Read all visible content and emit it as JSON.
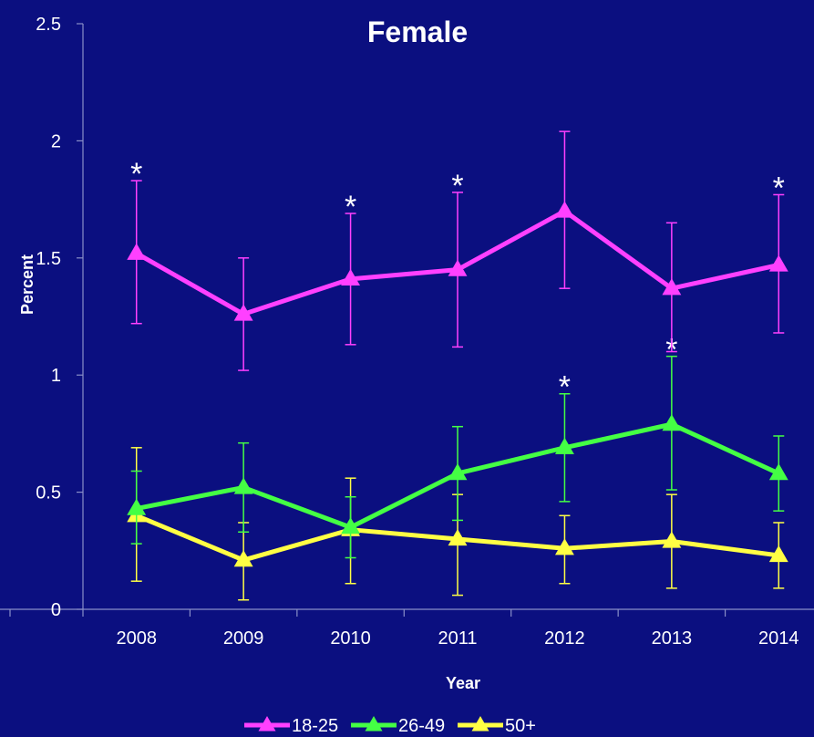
{
  "chart_data": {
    "type": "line",
    "title": "Female",
    "xlabel": "Year",
    "ylabel": "Percent",
    "x": [
      "2008",
      "2009",
      "2010",
      "2011",
      "2012",
      "2013",
      "2014"
    ],
    "ylim": [
      0,
      2.5
    ],
    "yticks": [
      0,
      0.5,
      1,
      1.5,
      2,
      2.5
    ],
    "ytick_labels": [
      "0",
      "0.5",
      "1",
      "1.5",
      "2",
      "2.5"
    ],
    "grid": false,
    "legend_position": "bottom",
    "series": [
      {
        "name": "18-25",
        "color": "#ff40ff",
        "values": [
          1.52,
          1.26,
          1.41,
          1.45,
          1.7,
          1.37,
          1.47
        ],
        "err_low": [
          1.22,
          1.02,
          1.13,
          1.12,
          1.37,
          1.1,
          1.18
        ],
        "err_high": [
          1.83,
          1.5,
          1.69,
          1.78,
          2.04,
          1.65,
          1.77
        ],
        "significant": [
          true,
          false,
          true,
          true,
          false,
          false,
          true
        ]
      },
      {
        "name": "26-49",
        "color": "#44ff44",
        "values": [
          0.43,
          0.52,
          0.35,
          0.58,
          0.69,
          0.79,
          0.58
        ],
        "err_low": [
          0.28,
          0.33,
          0.22,
          0.38,
          0.46,
          0.51,
          0.42
        ],
        "err_high": [
          0.59,
          0.71,
          0.48,
          0.78,
          0.92,
          1.08,
          0.74
        ],
        "significant": [
          false,
          false,
          false,
          false,
          true,
          true,
          false
        ]
      },
      {
        "name": "50+",
        "color": "#ffff44",
        "values": [
          0.4,
          0.21,
          0.34,
          0.3,
          0.26,
          0.29,
          0.23
        ],
        "err_low": [
          0.12,
          0.04,
          0.11,
          0.06,
          0.11,
          0.09,
          0.09
        ],
        "err_high": [
          0.69,
          0.37,
          0.56,
          0.49,
          0.4,
          0.49,
          0.37
        ],
        "significant": [
          false,
          false,
          false,
          false,
          false,
          false,
          false
        ]
      }
    ],
    "significance_marker": "*"
  }
}
